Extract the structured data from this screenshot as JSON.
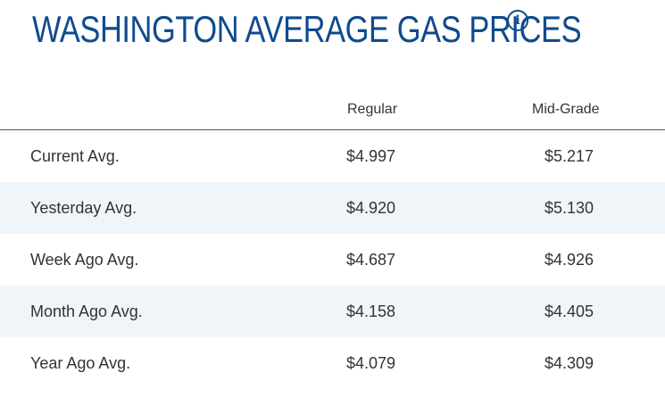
{
  "title": "WASHINGTON AVERAGE GAS PRICES",
  "info_icon": "info-icon",
  "columns": {
    "regular": "Regular",
    "mid_grade": "Mid-Grade"
  },
  "rows": [
    {
      "label": "Current Avg.",
      "regular": "$4.997",
      "mid_grade": "$5.217"
    },
    {
      "label": "Yesterday Avg.",
      "regular": "$4.920",
      "mid_grade": "$5.130"
    },
    {
      "label": "Week Ago Avg.",
      "regular": "$4.687",
      "mid_grade": "$4.926"
    },
    {
      "label": "Month Ago Avg.",
      "regular": "$4.158",
      "mid_grade": "$4.405"
    },
    {
      "label": "Year Ago Avg.",
      "regular": "$4.079",
      "mid_grade": "$4.309"
    }
  ],
  "colors": {
    "title": "#0f4b8f",
    "text": "#333333",
    "alt_row": "#f0f5f9"
  }
}
